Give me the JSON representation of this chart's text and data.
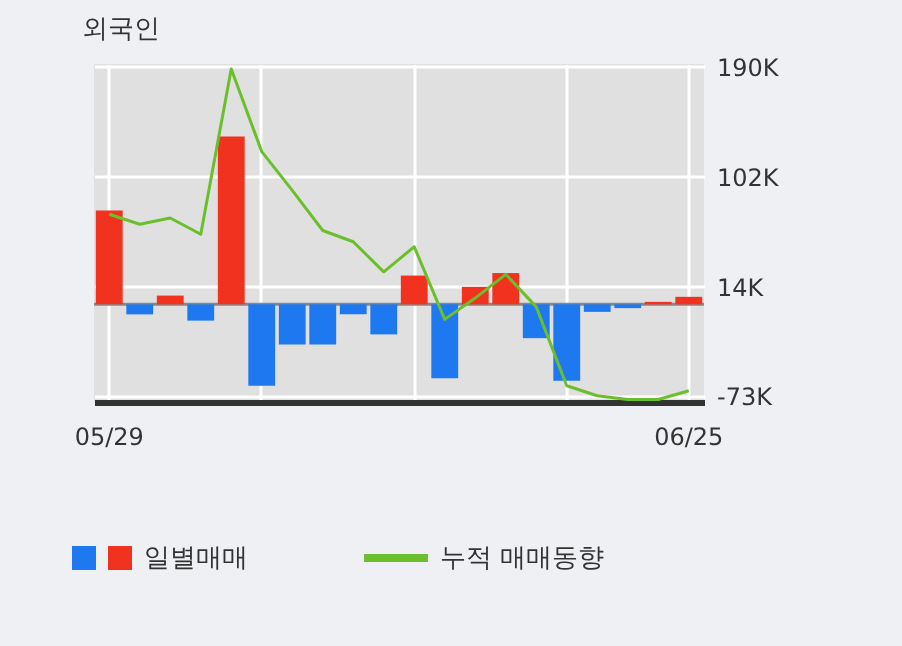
{
  "chart_data": {
    "type": "bar",
    "title": "외국인",
    "categories": [
      "05/29",
      null,
      null,
      null,
      null,
      null,
      null,
      null,
      null,
      null,
      null,
      null,
      null,
      null,
      null,
      null,
      null,
      null,
      null,
      "06/25"
    ],
    "series": [
      {
        "name": "일별매매",
        "colors": [
          "#f0321e",
          "#1e78f0",
          "#f0321e",
          "#1e78f0",
          "#f0321e",
          "#1e78f0",
          "#1e78f0",
          "#1e78f0",
          "#1e78f0",
          "#1e78f0",
          "#f0321e",
          "#1e78f0",
          "#f0321e",
          "#f0321e",
          "#1e78f0",
          "#1e78f0",
          "#1e78f0",
          "#1e78f0",
          "#f0321e",
          "#f0321e"
        ],
        "values": [
          75,
          -8,
          7,
          -13,
          134,
          -65,
          -32,
          -32,
          -8,
          -24,
          23,
          -59,
          14,
          25,
          -27,
          -61,
          -6,
          -3,
          2,
          6
        ]
      },
      {
        "name": "누적 매매동향",
        "type": "line",
        "color": "#6cbf2c",
        "values": [
          72,
          64,
          69,
          56,
          188,
          122,
          91,
          59,
          50,
          26,
          46,
          -12,
          5,
          24,
          -2,
          -65,
          -73,
          -76,
          -76,
          -69
        ]
      }
    ],
    "ylim": [
      -78,
      192
    ],
    "yticks": [
      {
        "value": 190,
        "label": "190K"
      },
      {
        "value": 102,
        "label": "102K"
      },
      {
        "value": 14,
        "label": "14K"
      },
      {
        "value": -73,
        "label": "-73K"
      }
    ],
    "grid": true,
    "legend": "bottom"
  }
}
